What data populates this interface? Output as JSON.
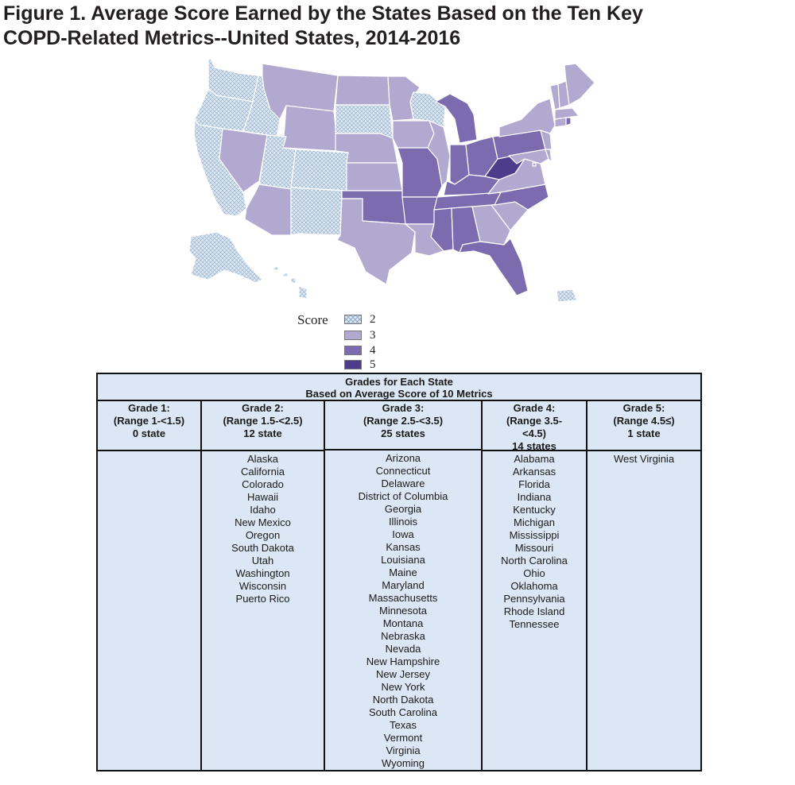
{
  "figure": {
    "title_line1": "Figure 1. Average Score Earned by the States Based on the Ten Key",
    "title_line2": "COPD-Related Metrics--United States, 2014-2016"
  },
  "legend": {
    "title": "Score",
    "items": [
      {
        "label": "2",
        "color": "#dde8f3",
        "pattern": "crosshatch"
      },
      {
        "label": "3",
        "color": "#b2a9d1"
      },
      {
        "label": "4",
        "color": "#7c6baf"
      },
      {
        "label": "5",
        "color": "#4d3b8c"
      }
    ]
  },
  "map_scores": {
    "WA": 2,
    "OR": 2,
    "CA": 2,
    "ID": 2,
    "UT": 2,
    "CO": 2,
    "NM": 2,
    "SD": 2,
    "WI": 2,
    "AK": 2,
    "HI": 2,
    "PR": 2,
    "MT": 3,
    "WY": 3,
    "NV": 3,
    "AZ": 3,
    "ND": 3,
    "NE": 3,
    "KS": 3,
    "TX": 3,
    "MN": 3,
    "IA": 3,
    "IL": 3,
    "LA": 3,
    "GA": 3,
    "SC": 3,
    "VA": 3,
    "MD": 3,
    "DE": 3,
    "NJ": 3,
    "NY": 3,
    "CT": 3,
    "MA": 3,
    "VT": 3,
    "NH": 3,
    "ME": 3,
    "DC": 3,
    "OK": 4,
    "MO": 4,
    "AR": 4,
    "MS": 4,
    "AL": 4,
    "TN": 4,
    "KY": 4,
    "IN": 4,
    "OH": 4,
    "MI": 4,
    "FL": 4,
    "NC": 4,
    "PA": 4,
    "RI": 4,
    "WV": 5
  },
  "table": {
    "header_line1": "Grades for Each State",
    "header_line2": "Based on Average Score of 10 Metrics",
    "columns": [
      {
        "line1": "Grade 1:",
        "line2": "(Range 1-<1.5)",
        "line3": "0 state",
        "line4": "",
        "states": []
      },
      {
        "line1": "Grade 2:",
        "line2": "(Range 1.5-<2.5)",
        "line3": "12 state",
        "line4": "",
        "states": [
          "Alaska",
          "California",
          "Colorado",
          "Hawaii",
          "Idaho",
          "New Mexico",
          "Oregon",
          "South Dakota",
          "Utah",
          "Washington",
          "Wisconsin",
          "Puerto Rico"
        ]
      },
      {
        "line1": "Grade 3:",
        "line2": "(Range 2.5-<3.5)",
        "line3": "25 states",
        "line4": "",
        "states": [
          "Arizona",
          "Connecticut",
          "Delaware",
          "District of Columbia",
          "Georgia",
          "Illinois",
          "Iowa",
          "Kansas",
          "Louisiana",
          "Maine",
          "Maryland",
          "Massachusetts",
          "Minnesota",
          "Montana",
          "Nebraska",
          "Nevada",
          "New Hampshire",
          "New Jersey",
          "New York",
          "North Dakota",
          "South Carolina",
          "Texas",
          "Vermont",
          "Virginia",
          "Wyoming"
        ]
      },
      {
        "line1": "Grade 4:",
        "line2": "(Range 3.5-",
        "line3": "<4.5)",
        "line4": "14 states",
        "states": [
          "Alabama",
          "Arkansas",
          "Florida",
          "Indiana",
          "Kentucky",
          "Michigan",
          "Mississippi",
          "Missouri",
          "North Carolina",
          "Ohio",
          "Oklahoma",
          "Pennsylvania",
          "Rhode Island",
          "Tennessee"
        ]
      },
      {
        "line1": "Grade 5:",
        "line2": "(Range 4.5≤)",
        "line3": "1 state",
        "line4": "",
        "states": [
          "West Virginia"
        ]
      }
    ]
  }
}
